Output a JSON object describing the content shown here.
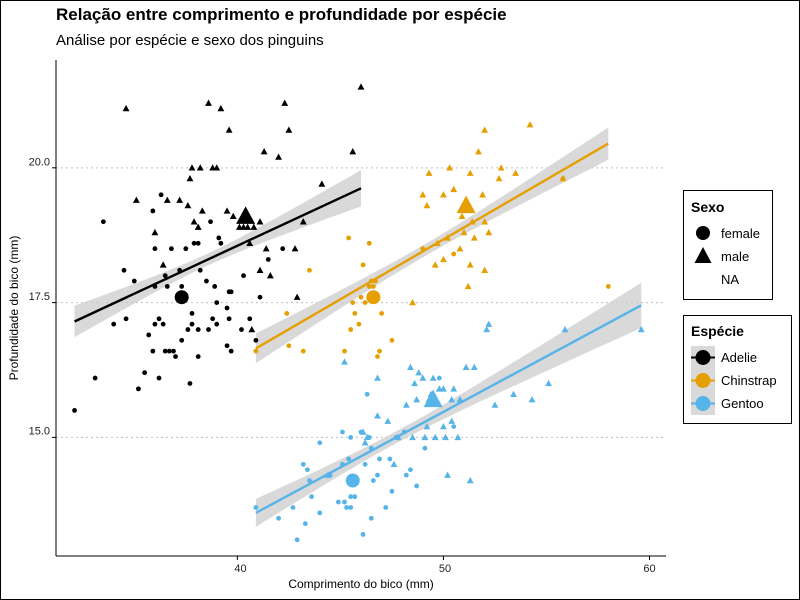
{
  "chart_data": {
    "type": "scatter",
    "title": "Relação entre comprimento e profundidade por espécie",
    "subtitle": "Análise por espécie e sexo dos pinguins",
    "xlabel": "Comprimento do bico (mm)",
    "ylabel": "Profundidade do bico (mm)",
    "xlim": [
      31.2,
      60.8
    ],
    "ylim": [
      12.8,
      22.0
    ],
    "xticks": [
      "40",
      "50",
      "60"
    ],
    "yticks": [
      "15.0",
      "17.5",
      "20.0"
    ],
    "grid": "horizontal dotted at y ticks",
    "legend_sex": {
      "title": "Sexo",
      "items": [
        "female",
        "male",
        "NA"
      ]
    },
    "legend_species": {
      "title": "Espécie",
      "items": [
        "Adelie",
        "Chinstrap",
        "Gentoo"
      ]
    },
    "colors": {
      "Adelie": "#000000",
      "Chinstrap": "#E69F00",
      "Gentoo": "#56B4E9",
      "band": "#cccccc",
      "grid": "#bfbfbf"
    },
    "series": [
      {
        "name": "Adelie",
        "fit": {
          "x": [
            32.1,
            46.0
          ],
          "y": [
            17.15,
            19.62
          ]
        },
        "means": [
          {
            "sex": "female",
            "x": 37.3,
            "y": 17.6
          },
          {
            "sex": "male",
            "x": 40.4,
            "y": 19.1
          }
        ],
        "female": [
          [
            32.1,
            15.5
          ],
          [
            33.1,
            16.1
          ],
          [
            33.5,
            19.0
          ],
          [
            34.0,
            17.1
          ],
          [
            34.5,
            18.1
          ],
          [
            34.6,
            17.2
          ],
          [
            35.0,
            17.9
          ],
          [
            35.2,
            15.9
          ],
          [
            35.5,
            16.2
          ],
          [
            35.7,
            16.9
          ],
          [
            35.9,
            16.6
          ],
          [
            35.9,
            19.2
          ],
          [
            36.0,
            17.1
          ],
          [
            36.0,
            17.8
          ],
          [
            36.0,
            18.5
          ],
          [
            36.2,
            17.2
          ],
          [
            36.2,
            16.1
          ],
          [
            36.3,
            19.5
          ],
          [
            36.4,
            17.1
          ],
          [
            36.5,
            16.6
          ],
          [
            36.5,
            18.0
          ],
          [
            36.6,
            17.8
          ],
          [
            36.7,
            16.6
          ],
          [
            36.8,
            18.5
          ],
          [
            36.9,
            16.6
          ],
          [
            37.0,
            16.5
          ],
          [
            37.2,
            18.1
          ],
          [
            37.3,
            16.8
          ],
          [
            37.3,
            17.8
          ],
          [
            37.5,
            18.5
          ],
          [
            37.6,
            17.0
          ],
          [
            37.7,
            16.0
          ],
          [
            37.8,
            17.1
          ],
          [
            37.8,
            17.3
          ],
          [
            37.9,
            18.6
          ],
          [
            38.1,
            17.0
          ],
          [
            38.1,
            18.6
          ],
          [
            38.1,
            16.5
          ],
          [
            38.2,
            18.1
          ],
          [
            38.5,
            17.9
          ],
          [
            38.6,
            17.0
          ],
          [
            38.7,
            19.0
          ],
          [
            38.8,
            17.2
          ],
          [
            38.9,
            17.8
          ],
          [
            39.0,
            17.1
          ],
          [
            39.0,
            17.5
          ],
          [
            39.1,
            18.7
          ],
          [
            39.2,
            18.6
          ],
          [
            39.5,
            16.7
          ],
          [
            39.5,
            17.4
          ],
          [
            39.6,
            17.7
          ],
          [
            39.7,
            17.7
          ],
          [
            39.6,
            17.2
          ],
          [
            39.7,
            16.6
          ],
          [
            40.2,
            17.0
          ],
          [
            40.3,
            18.0
          ],
          [
            40.6,
            17.2
          ],
          [
            40.9,
            16.8
          ],
          [
            41.1,
            17.6
          ],
          [
            41.5,
            18.3
          ],
          [
            42.2,
            18.5
          ]
        ],
        "male": [
          [
            34.6,
            21.1
          ],
          [
            35.1,
            19.4
          ],
          [
            36.0,
            18.8
          ],
          [
            36.4,
            18.2
          ],
          [
            36.6,
            19.4
          ],
          [
            37.2,
            19.4
          ],
          [
            37.6,
            19.3
          ],
          [
            37.7,
            19.8
          ],
          [
            37.8,
            20.0
          ],
          [
            37.9,
            19.0
          ],
          [
            38.1,
            18.9
          ],
          [
            38.3,
            19.2
          ],
          [
            38.6,
            21.2
          ],
          [
            38.8,
            20.0
          ],
          [
            39.0,
            20.0
          ],
          [
            39.2,
            21.1
          ],
          [
            39.5,
            19.2
          ],
          [
            39.6,
            20.7
          ],
          [
            39.8,
            19.1
          ],
          [
            40.1,
            18.9
          ],
          [
            40.3,
            18.9
          ],
          [
            40.5,
            18.9
          ],
          [
            40.6,
            18.6
          ],
          [
            40.8,
            18.9
          ],
          [
            41.1,
            19.0
          ],
          [
            41.3,
            20.3
          ],
          [
            41.4,
            18.5
          ],
          [
            41.6,
            18.0
          ],
          [
            42.0,
            20.2
          ],
          [
            42.3,
            21.2
          ],
          [
            42.5,
            20.7
          ],
          [
            42.8,
            18.5
          ],
          [
            42.9,
            17.6
          ],
          [
            43.2,
            19.0
          ],
          [
            44.1,
            19.7
          ],
          [
            45.6,
            20.3
          ],
          [
            46.0,
            21.5
          ],
          [
            40.7,
            17.0
          ],
          [
            41.1,
            18.1
          ],
          [
            38.2,
            20.0
          ]
        ]
      },
      {
        "name": "Chinstrap",
        "fit": {
          "x": [
            40.9,
            58.0
          ],
          "y": [
            16.65,
            20.45
          ]
        },
        "means": [
          {
            "sex": "female",
            "x": 46.6,
            "y": 17.6
          },
          {
            "sex": "male",
            "x": 51.1,
            "y": 19.3
          }
        ],
        "female": [
          [
            40.9,
            16.6
          ],
          [
            42.4,
            17.3
          ],
          [
            42.5,
            16.7
          ],
          [
            43.2,
            16.6
          ],
          [
            43.5,
            18.1
          ],
          [
            45.2,
            16.6
          ],
          [
            45.4,
            18.7
          ],
          [
            45.5,
            17.0
          ],
          [
            45.6,
            17.5
          ],
          [
            45.7,
            17.3
          ],
          [
            45.9,
            17.1
          ],
          [
            46.0,
            17.6
          ],
          [
            46.1,
            18.2
          ],
          [
            46.2,
            17.5
          ],
          [
            46.4,
            17.8
          ],
          [
            46.4,
            18.6
          ],
          [
            46.5,
            17.9
          ],
          [
            46.6,
            17.8
          ],
          [
            46.7,
            17.9
          ],
          [
            46.8,
            16.5
          ],
          [
            46.9,
            16.6
          ],
          [
            47.0,
            17.3
          ],
          [
            47.5,
            16.8
          ],
          [
            49.0,
            18.5
          ],
          [
            50.5,
            18.4
          ],
          [
            55.8,
            19.8
          ],
          [
            58.0,
            17.8
          ]
        ],
        "male": [
          [
            48.5,
            17.5
          ],
          [
            49.0,
            19.5
          ],
          [
            49.3,
            19.9
          ],
          [
            49.6,
            18.2
          ],
          [
            49.7,
            18.6
          ],
          [
            50.0,
            19.5
          ],
          [
            50.2,
            18.7
          ],
          [
            50.3,
            20.0
          ],
          [
            50.5,
            19.6
          ],
          [
            50.8,
            18.5
          ],
          [
            50.9,
            19.1
          ],
          [
            51.0,
            18.8
          ],
          [
            51.3,
            19.9
          ],
          [
            51.4,
            19.0
          ],
          [
            51.5,
            18.7
          ],
          [
            51.7,
            20.3
          ],
          [
            51.9,
            19.5
          ],
          [
            52.0,
            18.1
          ],
          [
            52.0,
            19.0
          ],
          [
            52.2,
            18.8
          ],
          [
            52.7,
            19.8
          ],
          [
            52.8,
            20.0
          ],
          [
            53.5,
            19.9
          ],
          [
            54.2,
            20.8
          ],
          [
            55.8,
            19.8
          ],
          [
            51.3,
            18.2
          ],
          [
            51.2,
            17.8
          ],
          [
            50.0,
            18.3
          ],
          [
            49.2,
            19.3
          ],
          [
            52.0,
            20.7
          ]
        ]
      },
      {
        "name": "Gentoo",
        "fit": {
          "x": [
            40.9,
            59.6
          ],
          "y": [
            13.6,
            17.45
          ]
        },
        "means": [
          {
            "sex": "female",
            "x": 45.6,
            "y": 14.2
          },
          {
            "sex": "male",
            "x": 49.5,
            "y": 15.7
          }
        ],
        "female": [
          [
            40.9,
            13.7
          ],
          [
            42.0,
            13.5
          ],
          [
            42.7,
            13.7
          ],
          [
            42.9,
            13.1
          ],
          [
            43.2,
            14.5
          ],
          [
            43.3,
            13.4
          ],
          [
            43.4,
            14.4
          ],
          [
            43.5,
            14.2
          ],
          [
            43.6,
            13.9
          ],
          [
            44.0,
            13.6
          ],
          [
            44.4,
            14.3
          ],
          [
            44.5,
            14.3
          ],
          [
            44.9,
            13.8
          ],
          [
            45.1,
            14.5
          ],
          [
            45.2,
            13.8
          ],
          [
            45.3,
            13.7
          ],
          [
            45.4,
            14.6
          ],
          [
            45.5,
            13.7
          ],
          [
            45.5,
            13.9
          ],
          [
            45.7,
            13.9
          ],
          [
            45.8,
            14.2
          ],
          [
            46.1,
            13.2
          ],
          [
            46.2,
            14.5
          ],
          [
            46.4,
            15.0
          ],
          [
            46.5,
            13.5
          ],
          [
            46.5,
            14.8
          ],
          [
            46.6,
            14.2
          ],
          [
            46.8,
            14.3
          ],
          [
            46.9,
            14.6
          ],
          [
            47.2,
            13.7
          ],
          [
            47.4,
            14.6
          ],
          [
            47.5,
            14.0
          ],
          [
            47.7,
            15.0
          ],
          [
            48.1,
            15.1
          ],
          [
            48.2,
            14.3
          ],
          [
            48.4,
            14.4
          ],
          [
            48.7,
            14.1
          ],
          [
            49.1,
            14.8
          ],
          [
            49.8,
            16.1
          ],
          [
            50.5,
            15.2
          ],
          [
            45.5,
            15.0
          ],
          [
            46.0,
            15.1
          ],
          [
            44.0,
            14.9
          ],
          [
            45.1,
            15.1
          ],
          [
            46.3,
            15.8
          ]
        ],
        "male": [
          [
            44.4,
            14.3
          ],
          [
            45.2,
            16.4
          ],
          [
            46.1,
            15.1
          ],
          [
            46.2,
            14.9
          ],
          [
            46.3,
            15.0
          ],
          [
            46.8,
            15.4
          ],
          [
            47.3,
            15.3
          ],
          [
            47.6,
            14.5
          ],
          [
            48.2,
            15.6
          ],
          [
            48.4,
            16.3
          ],
          [
            48.5,
            15.0
          ],
          [
            48.6,
            16.0
          ],
          [
            48.7,
            15.7
          ],
          [
            49.0,
            16.1
          ],
          [
            49.1,
            15.0
          ],
          [
            49.2,
            15.2
          ],
          [
            49.3,
            15.7
          ],
          [
            49.4,
            15.8
          ],
          [
            49.5,
            16.1
          ],
          [
            49.6,
            15.0
          ],
          [
            49.8,
            15.9
          ],
          [
            50.0,
            15.2
          ],
          [
            50.0,
            15.9
          ],
          [
            50.1,
            15.0
          ],
          [
            50.2,
            14.3
          ],
          [
            50.4,
            15.3
          ],
          [
            50.4,
            15.7
          ],
          [
            50.5,
            15.9
          ],
          [
            50.7,
            15.0
          ],
          [
            50.8,
            15.7
          ],
          [
            51.1,
            16.3
          ],
          [
            51.3,
            14.2
          ],
          [
            51.5,
            16.3
          ],
          [
            52.1,
            17.0
          ],
          [
            52.2,
            17.1
          ],
          [
            52.5,
            15.6
          ],
          [
            53.4,
            15.8
          ],
          [
            54.3,
            15.7
          ],
          [
            55.1,
            16.0
          ],
          [
            55.9,
            17.0
          ],
          [
            59.6,
            17.0
          ],
          [
            48.8,
            16.2
          ],
          [
            47.8,
            15.0
          ],
          [
            46.8,
            16.1
          ]
        ]
      }
    ]
  }
}
